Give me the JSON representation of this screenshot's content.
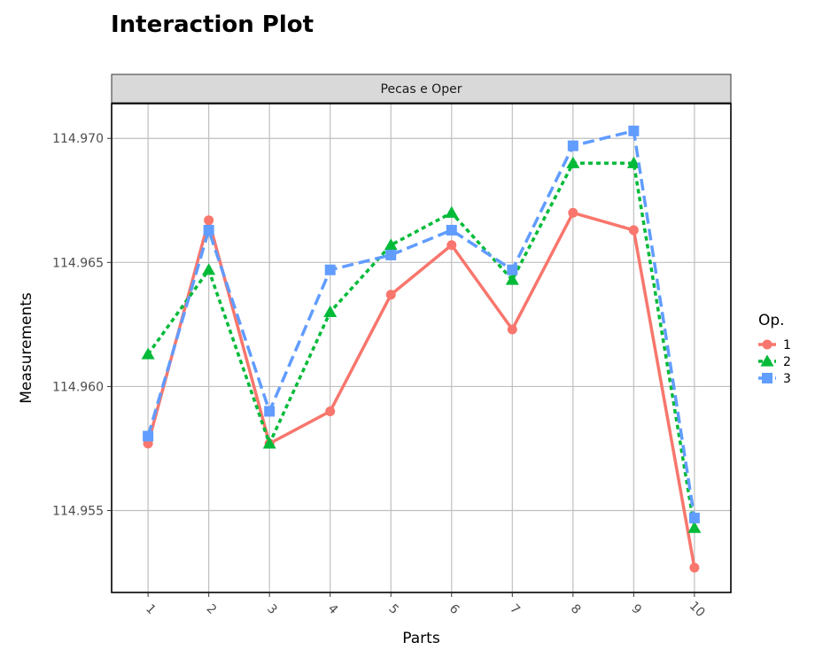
{
  "chart_data": {
    "type": "line",
    "title": "Interaction Plot",
    "facet_label": "Pecas e Oper",
    "xlabel": "Parts",
    "ylabel": "Measurements",
    "categories": [
      "1",
      "2",
      "3",
      "4",
      "5",
      "6",
      "7",
      "8",
      "9",
      "10"
    ],
    "ylim": [
      114.9517,
      114.9714
    ],
    "yticks": [
      114.955,
      114.96,
      114.965,
      114.97
    ],
    "ytick_labels": [
      "114.955",
      "114.960",
      "114.965",
      "114.970"
    ],
    "legend_title": "Op.",
    "legend_position": "right",
    "grid": true,
    "series": [
      {
        "name": "1",
        "color": "#F8766D",
        "marker": "circle",
        "line": "solid",
        "values": [
          114.9577,
          114.9667,
          114.9577,
          114.959,
          114.9637,
          114.9657,
          114.9623,
          114.967,
          114.9663,
          114.9527
        ]
      },
      {
        "name": "2",
        "color": "#00BA38",
        "marker": "triangle",
        "line": "dotted",
        "values": [
          114.9613,
          114.9647,
          114.9577,
          114.963,
          114.9657,
          114.967,
          114.9643,
          114.969,
          114.969,
          114.9543
        ]
      },
      {
        "name": "3",
        "color": "#619CFF",
        "marker": "square",
        "line": "dashed",
        "values": [
          114.958,
          114.9663,
          114.959,
          114.9647,
          114.9653,
          114.9663,
          114.9647,
          114.9697,
          114.9703,
          114.9547
        ]
      }
    ]
  }
}
